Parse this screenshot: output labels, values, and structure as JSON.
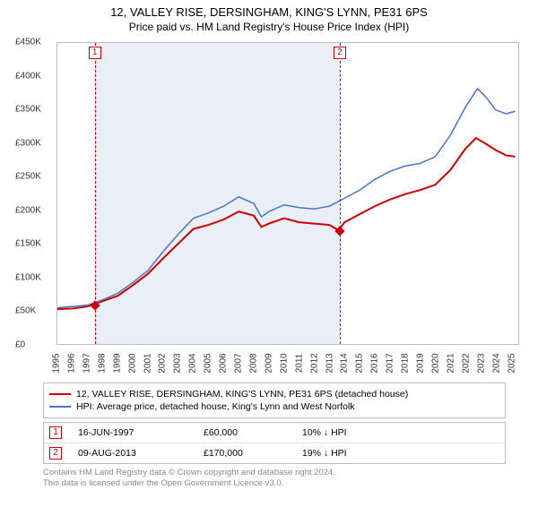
{
  "title": "12, VALLEY RISE, DERSINGHAM, KING'S LYNN, PE31 6PS",
  "subtitle": "Price paid vs. HM Land Registry's House Price Index (HPI)",
  "chart": {
    "type": "line",
    "background_color": "#ffffff",
    "border_color": "#bcbcbc",
    "x": {
      "min": 1995,
      "max": 2025.5,
      "ticks": [
        1995,
        1996,
        1997,
        1998,
        1999,
        2000,
        2001,
        2002,
        2003,
        2004,
        2005,
        2006,
        2007,
        2008,
        2009,
        2010,
        2011,
        2012,
        2013,
        2014,
        2015,
        2016,
        2017,
        2018,
        2019,
        2020,
        2021,
        2022,
        2023,
        2024,
        2025
      ]
    },
    "y": {
      "min": 0,
      "max": 450000,
      "tick_step": 50000,
      "tick_labels": [
        "£0",
        "£50K",
        "£100K",
        "£150K",
        "£200K",
        "£250K",
        "£300K",
        "£350K",
        "£400K",
        "£450K"
      ]
    },
    "shade": {
      "from": 1997.46,
      "to": 2013.61,
      "color": "#e9eef7"
    },
    "events": [
      {
        "num": "1",
        "x": 1997.46,
        "color": "#cc0000"
      },
      {
        "num": "2",
        "x": 2013.61,
        "color": "#cc0000"
      }
    ],
    "series": [
      {
        "name": "price_paid",
        "color": "#cc0000",
        "width": 2,
        "points": [
          [
            1995,
            52000
          ],
          [
            1996,
            53000
          ],
          [
            1997,
            56000
          ],
          [
            1997.46,
            60000
          ],
          [
            1998,
            64000
          ],
          [
            1999,
            72000
          ],
          [
            2000,
            88000
          ],
          [
            2001,
            105000
          ],
          [
            2002,
            128000
          ],
          [
            2003,
            150000
          ],
          [
            2004,
            172000
          ],
          [
            2005,
            178000
          ],
          [
            2006,
            186000
          ],
          [
            2007,
            198000
          ],
          [
            2008,
            192000
          ],
          [
            2008.5,
            175000
          ],
          [
            2009,
            180000
          ],
          [
            2010,
            188000
          ],
          [
            2011,
            182000
          ],
          [
            2012,
            180000
          ],
          [
            2013,
            178000
          ],
          [
            2013.61,
            170000
          ],
          [
            2014,
            182000
          ],
          [
            2015,
            194000
          ],
          [
            2016,
            206000
          ],
          [
            2017,
            216000
          ],
          [
            2018,
            224000
          ],
          [
            2019,
            230000
          ],
          [
            2020,
            238000
          ],
          [
            2021,
            260000
          ],
          [
            2022,
            292000
          ],
          [
            2022.7,
            308000
          ],
          [
            2023.3,
            300000
          ],
          [
            2024,
            290000
          ],
          [
            2024.7,
            282000
          ],
          [
            2025.3,
            280000
          ]
        ],
        "markers": [
          {
            "x": 1997.46,
            "y": 60000
          },
          {
            "x": 2013.61,
            "y": 170000
          }
        ]
      },
      {
        "name": "hpi",
        "color": "#4a74c9",
        "width": 1.5,
        "points": [
          [
            1995,
            54000
          ],
          [
            1996,
            56000
          ],
          [
            1997,
            58000
          ],
          [
            1998,
            66000
          ],
          [
            1999,
            76000
          ],
          [
            2000,
            92000
          ],
          [
            2001,
            110000
          ],
          [
            2002,
            138000
          ],
          [
            2003,
            164000
          ],
          [
            2004,
            188000
          ],
          [
            2005,
            196000
          ],
          [
            2006,
            206000
          ],
          [
            2007,
            220000
          ],
          [
            2008,
            210000
          ],
          [
            2008.5,
            190000
          ],
          [
            2009,
            198000
          ],
          [
            2010,
            208000
          ],
          [
            2011,
            204000
          ],
          [
            2012,
            202000
          ],
          [
            2013,
            206000
          ],
          [
            2014,
            218000
          ],
          [
            2015,
            230000
          ],
          [
            2016,
            246000
          ],
          [
            2017,
            258000
          ],
          [
            2018,
            266000
          ],
          [
            2019,
            270000
          ],
          [
            2020,
            280000
          ],
          [
            2021,
            312000
          ],
          [
            2022,
            354000
          ],
          [
            2022.8,
            382000
          ],
          [
            2023.4,
            368000
          ],
          [
            2024,
            350000
          ],
          [
            2024.7,
            344000
          ],
          [
            2025.3,
            348000
          ]
        ]
      }
    ]
  },
  "legend": [
    {
      "color": "#cc0000",
      "label": "12, VALLEY RISE, DERSINGHAM, KING'S LYNN, PE31 6PS (detached house)"
    },
    {
      "color": "#4a74c9",
      "label": "HPI: Average price, detached house, King's Lynn and West Norfolk"
    }
  ],
  "transactions": [
    {
      "num": "1",
      "color": "#cc0000",
      "date": "16-JUN-1997",
      "price": "£60,000",
      "diff": "10% ↓ HPI"
    },
    {
      "num": "2",
      "color": "#cc0000",
      "date": "09-AUG-2013",
      "price": "£170,000",
      "diff": "19% ↓ HPI"
    }
  ],
  "footer": {
    "line1": "Contains HM Land Registry data © Crown copyright and database right 2024.",
    "line2": "This data is licensed under the Open Government Licence v3.0."
  }
}
